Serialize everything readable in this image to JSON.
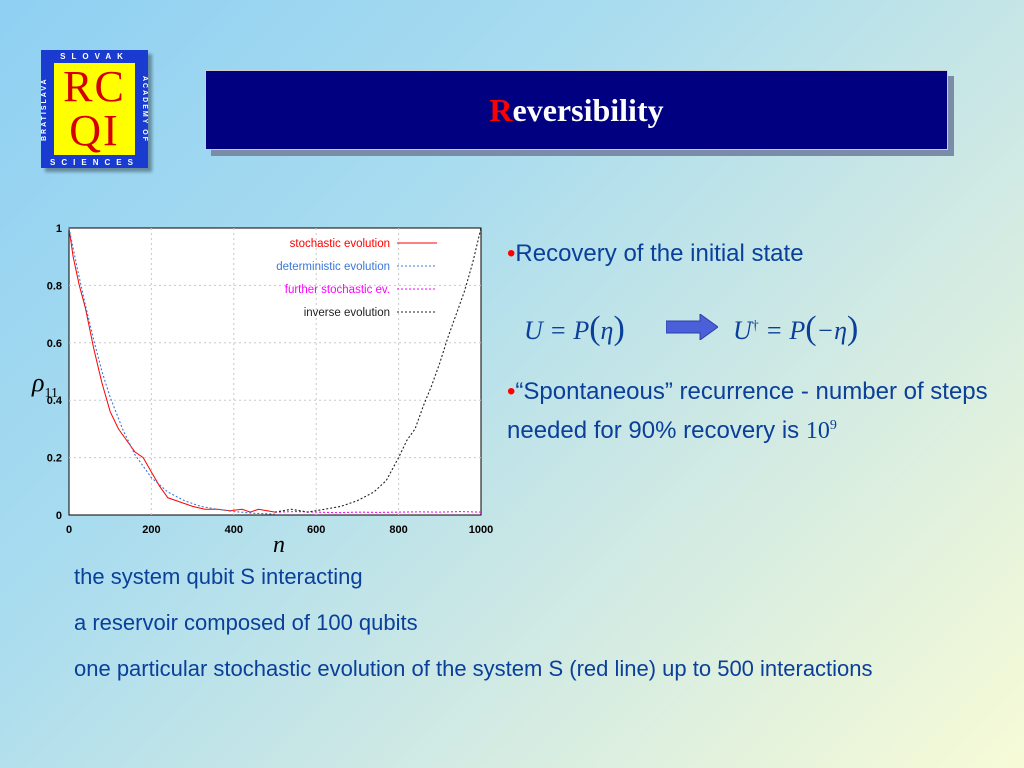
{
  "logo": {
    "top_text": "SLOVAK",
    "bottom_text": "SCIENCES",
    "left_text": "BRATISLAVA",
    "right_text": "ACADEMY OF",
    "line1": "RC",
    "line2": "QI"
  },
  "title": {
    "first_letter": "R",
    "rest": "eversibility"
  },
  "axes": {
    "y_symbol": "ρ",
    "y_sub": "11",
    "x_symbol": "n"
  },
  "chart_data": {
    "type": "line",
    "xlim": [
      0,
      1000
    ],
    "ylim": [
      0,
      1
    ],
    "x_ticks": [
      "0",
      "200",
      "400",
      "600",
      "800",
      "1000"
    ],
    "y_ticks": [
      "0",
      "0.2",
      "0.4",
      "0.6",
      "0.8",
      "1"
    ],
    "grid": true,
    "legend_position": "top-right",
    "series": [
      {
        "name": "stochastic evolution",
        "color": "#ff0000",
        "style": "solid",
        "x": [
          0,
          10,
          25,
          40,
          60,
          80,
          100,
          120,
          140,
          160,
          180,
          200,
          220,
          240,
          260,
          280,
          300,
          330,
          360,
          390,
          420,
          440,
          460,
          500
        ],
        "y": [
          1.0,
          0.9,
          0.8,
          0.72,
          0.58,
          0.46,
          0.36,
          0.3,
          0.26,
          0.22,
          0.2,
          0.15,
          0.1,
          0.06,
          0.05,
          0.04,
          0.03,
          0.02,
          0.02,
          0.015,
          0.02,
          0.01,
          0.02,
          0.01
        ]
      },
      {
        "name": "deterministic evolution",
        "color": "#3a78d8",
        "style": "dotted",
        "x": [
          0,
          20,
          40,
          60,
          80,
          100,
          130,
          160,
          200,
          240,
          280,
          320,
          360,
          400,
          450,
          500
        ],
        "y": [
          1.0,
          0.86,
          0.73,
          0.61,
          0.5,
          0.41,
          0.3,
          0.21,
          0.13,
          0.08,
          0.05,
          0.03,
          0.02,
          0.012,
          0.006,
          0.003
        ]
      },
      {
        "name": "further stochastic ev.",
        "color": "#ff00ff",
        "style": "dotted",
        "x": [
          500,
          550,
          600,
          650,
          700,
          750,
          800,
          850,
          900,
          950,
          1000
        ],
        "y": [
          0.01,
          0.012,
          0.01,
          0.008,
          0.01,
          0.009,
          0.01,
          0.011,
          0.01,
          0.012,
          0.01
        ]
      },
      {
        "name": "inverse evolution",
        "color": "#222222",
        "style": "dotted",
        "x": [
          500,
          540,
          580,
          620,
          660,
          700,
          740,
          770,
          800,
          820,
          840,
          860,
          880,
          900,
          920,
          940,
          960,
          980,
          1000
        ],
        "y": [
          0.01,
          0.02,
          0.01,
          0.02,
          0.03,
          0.05,
          0.08,
          0.12,
          0.2,
          0.26,
          0.3,
          0.38,
          0.45,
          0.53,
          0.62,
          0.7,
          0.78,
          0.88,
          1.0
        ]
      }
    ]
  },
  "bullets": {
    "dot": "•",
    "b1": "Recovery of the initial state",
    "b2": "“Spontaneous” recurrence - number of steps needed for 90% recovery is",
    "ten_base": "10",
    "ten_exp": "9"
  },
  "equations": {
    "eq1_left": "U",
    "eq1_mid": " = P",
    "eq1_arg": "η",
    "eq2_left": "U",
    "eq2_dagger": "†",
    "eq2_mid": " = P",
    "eq2_arg": "−η",
    "lparen": "(",
    "rparen": ")"
  },
  "notes": {
    "n1": "the system qubit S interacting",
    "n2": "a reservoir  composed of 100 qubits",
    "n3": "one particular stochastic evolution of the system S (red line) up to 500 interactions"
  }
}
